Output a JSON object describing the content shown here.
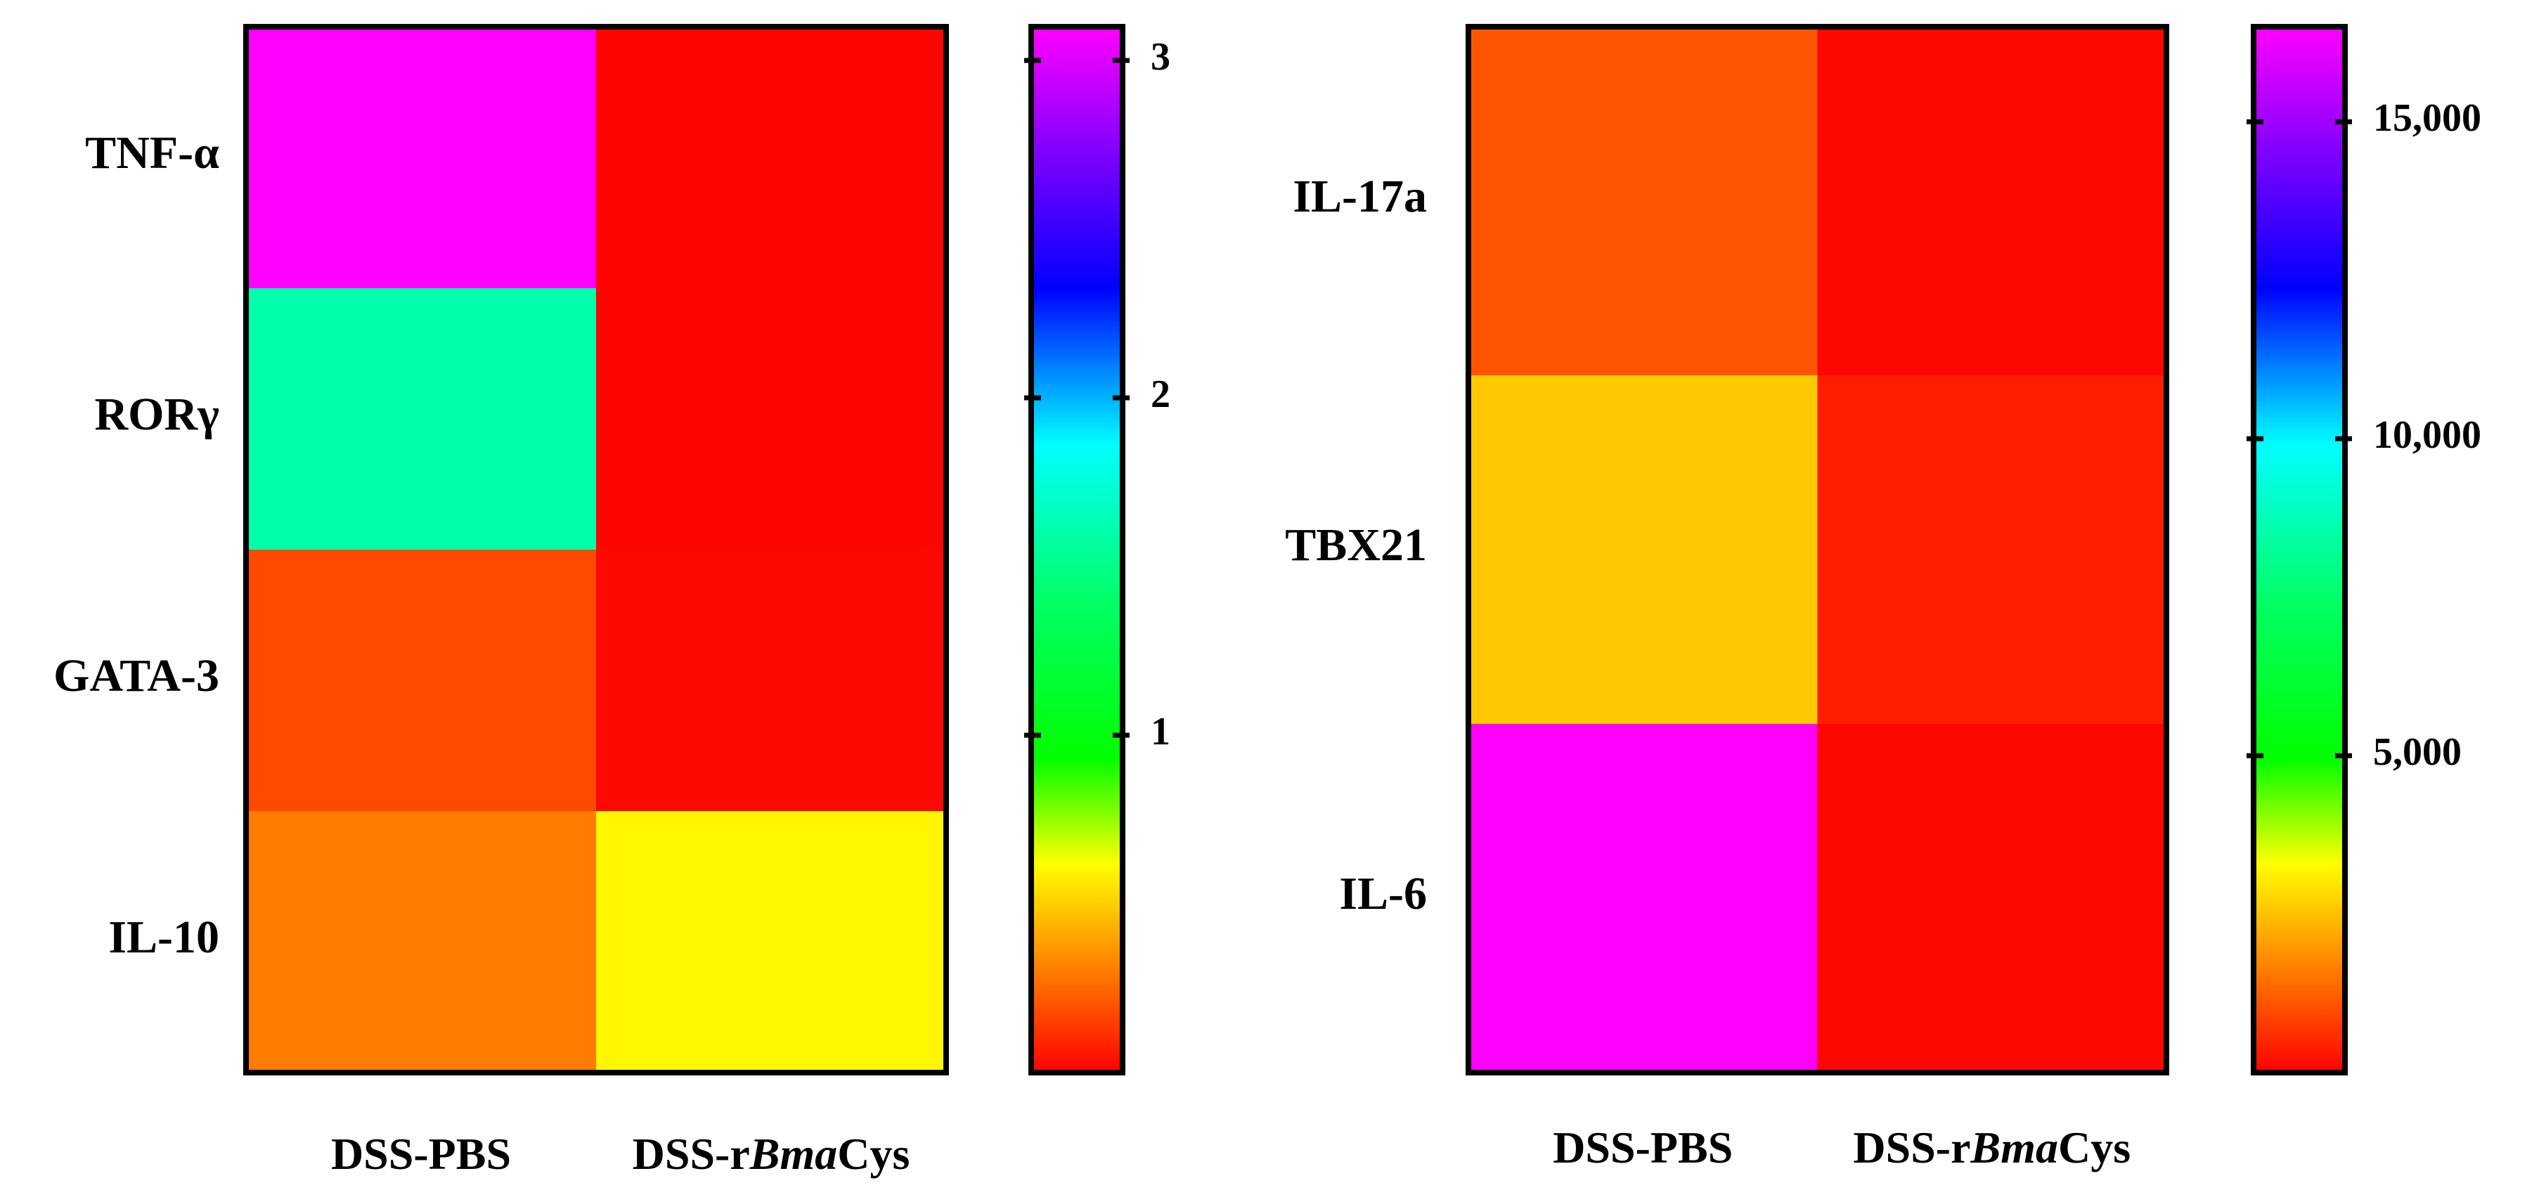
{
  "chart_data": [
    {
      "type": "heatmap",
      "columns": [
        "DSS-PBS",
        "DSS-rBmaCys"
      ],
      "column_labels": [
        {
          "parts": [
            {
              "text": "DSS-PBS",
              "italic": false
            }
          ]
        },
        {
          "parts": [
            {
              "text": "DSS-r",
              "italic": false
            },
            {
              "text": "Bma",
              "italic": true
            },
            {
              "text": "Cys",
              "italic": false
            }
          ]
        }
      ],
      "rows": [
        "TNF-α",
        "RORγ",
        "GATA-3",
        "IL-10"
      ],
      "values": [
        [
          3.1,
          0.01
        ],
        [
          1.6,
          0.01
        ],
        [
          0.18,
          0.02
        ],
        [
          0.3,
          0.6
        ]
      ],
      "colorbar": {
        "range": [
          0,
          3.1
        ],
        "ticks": [
          1,
          2,
          3
        ],
        "tick_labels": [
          "1",
          "2",
          "3"
        ]
      }
    },
    {
      "type": "heatmap",
      "columns": [
        "DSS-PBS",
        "DSS-rBmaCys"
      ],
      "column_labels": [
        {
          "parts": [
            {
              "text": "DSS-PBS",
              "italic": false
            }
          ]
        },
        {
          "parts": [
            {
              "text": "DSS-r",
              "italic": false
            },
            {
              "text": "Bma",
              "italic": true
            },
            {
              "text": "Cys",
              "italic": false
            }
          ]
        }
      ],
      "rows": [
        "IL-17a",
        "TBX21",
        "IL-6"
      ],
      "values": [
        [
          1100,
          80
        ],
        [
          2600,
          400
        ],
        [
          16500,
          80
        ]
      ],
      "colorbar": {
        "range": [
          0,
          16500
        ],
        "ticks": [
          5000,
          10000,
          15000
        ],
        "tick_labels": [
          "5,000",
          "10,000",
          "15,000"
        ]
      }
    }
  ],
  "colormap": [
    {
      "t": 0.0,
      "color": "#ff0000"
    },
    {
      "t": 0.1,
      "color": "#ff8000"
    },
    {
      "t": 0.2,
      "color": "#ffff00"
    },
    {
      "t": 0.3,
      "color": "#00ff00"
    },
    {
      "t": 0.45,
      "color": "#00ff66"
    },
    {
      "t": 0.6,
      "color": "#00ffff"
    },
    {
      "t": 0.75,
      "color": "#0000ff"
    },
    {
      "t": 0.88,
      "color": "#8000ff"
    },
    {
      "t": 1.0,
      "color": "#ff00ff"
    }
  ]
}
